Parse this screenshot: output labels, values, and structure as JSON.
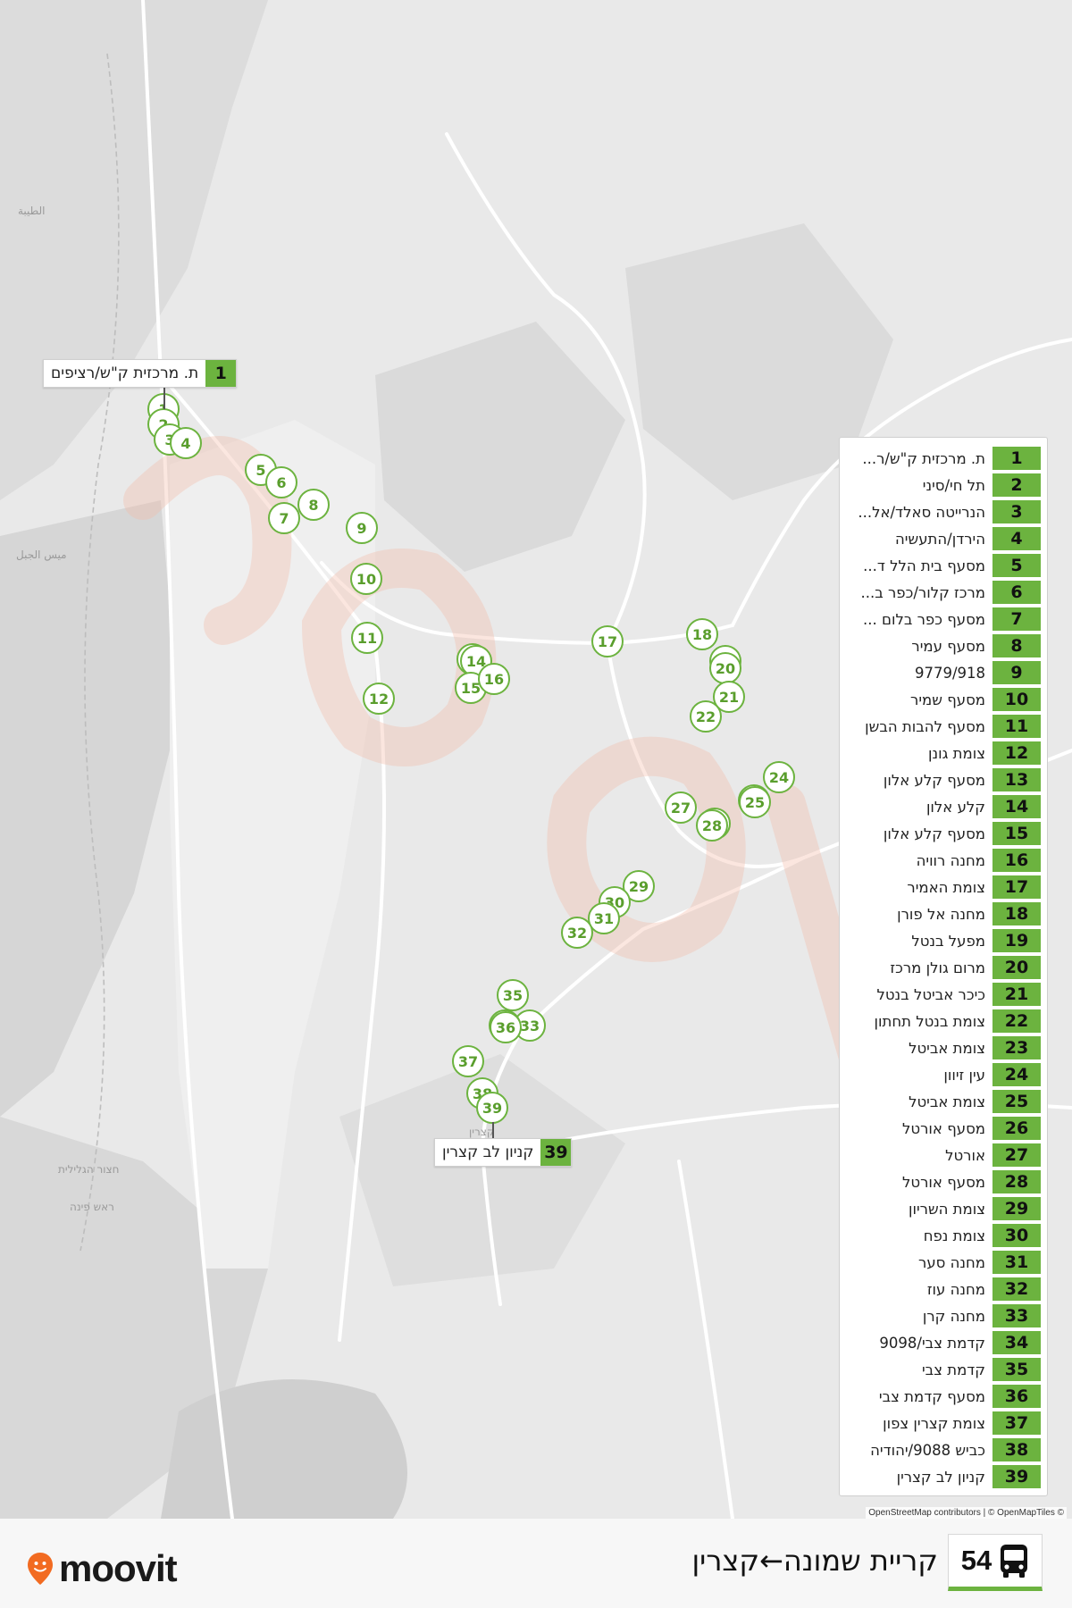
{
  "route": {
    "number": "54",
    "title": "קריית שמונה←קצרין",
    "accent_color": "#6cb33f",
    "icon": "bus-icon"
  },
  "brand": {
    "name": "moovit",
    "color": "#f26b21"
  },
  "attribution": "OpenStreetMap contributors | © OpenMapTiles ©",
  "map_labels": [
    "الطيبة",
    "ميس الجبل",
    "חצור הגלילית",
    "ראש פינה",
    "קצרין"
  ],
  "callouts": {
    "start": {
      "number": "1",
      "name": "ת. מרכזית ק\"ש/רציפים"
    },
    "end": {
      "number": "39",
      "name": "קניון לב קצרין"
    }
  },
  "stops": [
    {
      "number": "1",
      "name": "ת. מרכזית ק\"ש/ר..."
    },
    {
      "number": "2",
      "name": "תל חי/סיני"
    },
    {
      "number": "3",
      "name": "הנרייטה סאלד/אל..."
    },
    {
      "number": "4",
      "name": "הירדן/התעשיה"
    },
    {
      "number": "5",
      "name": "מסעף בית הלל ד..."
    },
    {
      "number": "6",
      "name": "מרכז קלור/כפר ב..."
    },
    {
      "number": "7",
      "name": "מסעף כפר בלום ..."
    },
    {
      "number": "8",
      "name": "מסעף עמיר"
    },
    {
      "number": "9",
      "name": "9779/918"
    },
    {
      "number": "10",
      "name": "מסעף שמיר"
    },
    {
      "number": "11",
      "name": "מסעף להבות הבשן"
    },
    {
      "number": "12",
      "name": "צומת גונן"
    },
    {
      "number": "13",
      "name": "מסעף קלע אלון"
    },
    {
      "number": "14",
      "name": "קלע אלון"
    },
    {
      "number": "15",
      "name": "מסעף קלע אלון"
    },
    {
      "number": "16",
      "name": "מחנה רוויה"
    },
    {
      "number": "17",
      "name": "צומת האמיר"
    },
    {
      "number": "18",
      "name": "מחנה אל פורן"
    },
    {
      "number": "19",
      "name": "מפעל בנטל"
    },
    {
      "number": "20",
      "name": "מרום גולן מרכז"
    },
    {
      "number": "21",
      "name": "כיכר אביטל בנטל"
    },
    {
      "number": "22",
      "name": "צומת בנטל תחתון"
    },
    {
      "number": "23",
      "name": "צומת אביטל"
    },
    {
      "number": "24",
      "name": "עין זיוון"
    },
    {
      "number": "25",
      "name": "צומת אביטל"
    },
    {
      "number": "26",
      "name": "מסעף אורטל"
    },
    {
      "number": "27",
      "name": "אורטל"
    },
    {
      "number": "28",
      "name": "מסעף אורטל"
    },
    {
      "number": "29",
      "name": "צומת השריון"
    },
    {
      "number": "30",
      "name": "צומת נפח"
    },
    {
      "number": "31",
      "name": "מחנה סער"
    },
    {
      "number": "32",
      "name": "מחנה עוז"
    },
    {
      "number": "33",
      "name": "מחנה קרן"
    },
    {
      "number": "34",
      "name": "קדמת צבי/9098"
    },
    {
      "number": "35",
      "name": "קדמת צבי"
    },
    {
      "number": "36",
      "name": "מסעף קדמת צבי"
    },
    {
      "number": "37",
      "name": "צומת קצרין צפון"
    },
    {
      "number": "38",
      "name": "כביש 9088/יהודיה"
    },
    {
      "number": "39",
      "name": "קניון לב קצרין"
    }
  ]
}
